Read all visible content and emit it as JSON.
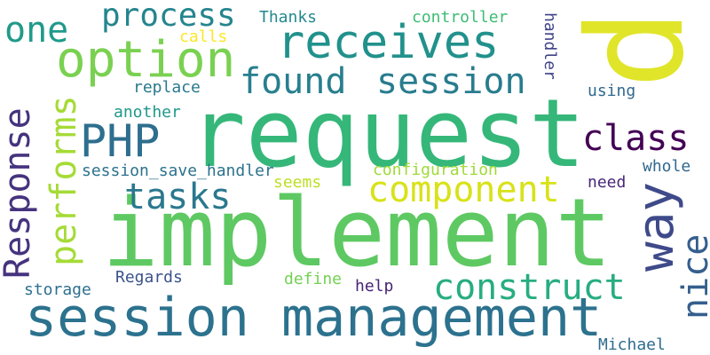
{
  "words": [
    {
      "id": "request",
      "text": "request",
      "color": "#35b779"
    },
    {
      "id": "implement",
      "text": "implement",
      "color": "#5ec962"
    },
    {
      "id": "session-management",
      "text": "session management",
      "color": "#2c728e"
    },
    {
      "id": "p",
      "text": "p",
      "color": "#e0e52a"
    },
    {
      "id": "receives",
      "text": "receives",
      "color": "#21918c"
    },
    {
      "id": "option",
      "text": "option",
      "color": "#7ad151"
    },
    {
      "id": "found",
      "text": "found",
      "color": "#277f8e"
    },
    {
      "id": "session",
      "text": "session",
      "color": "#287c8e"
    },
    {
      "id": "process",
      "text": "process",
      "color": "#25858e"
    },
    {
      "id": "one",
      "text": "one",
      "color": "#1f9a8a"
    },
    {
      "id": "php",
      "text": "PHP",
      "color": "#2e6e8e"
    },
    {
      "id": "class",
      "text": "class",
      "color": "#440154"
    },
    {
      "id": "way",
      "text": "way",
      "color": "#3e4a89"
    },
    {
      "id": "tasks",
      "text": "tasks",
      "color": "#2a788e"
    },
    {
      "id": "component",
      "text": "component",
      "color": "#d8e219"
    },
    {
      "id": "construct",
      "text": "construct",
      "color": "#27ad81"
    },
    {
      "id": "response",
      "text": "Response",
      "color": "#46337e"
    },
    {
      "id": "performs",
      "text": "performs",
      "color": "#a5db36"
    },
    {
      "id": "nice",
      "text": "nice",
      "color": "#355f8d"
    },
    {
      "id": "thanks",
      "text": "Thanks",
      "color": "#23898e"
    },
    {
      "id": "controller",
      "text": "controller",
      "color": "#3dbc74"
    },
    {
      "id": "calls",
      "text": "calls",
      "color": "#fde725"
    },
    {
      "id": "handler",
      "text": "handler",
      "color": "#404387"
    },
    {
      "id": "replace",
      "text": "replace",
      "color": "#2a788e"
    },
    {
      "id": "using",
      "text": "using",
      "color": "#31688e"
    },
    {
      "id": "another",
      "text": "another",
      "color": "#1f988b"
    },
    {
      "id": "session-save-handler",
      "text": "session_save_handler",
      "color": "#2c728e"
    },
    {
      "id": "configuration",
      "text": "configuration",
      "color": "#a0da39"
    },
    {
      "id": "whole",
      "text": "whole",
      "color": "#31688e"
    },
    {
      "id": "seems",
      "text": "seems",
      "color": "#bddf26"
    },
    {
      "id": "need",
      "text": "need",
      "color": "#482878"
    },
    {
      "id": "regards",
      "text": "Regards",
      "color": "#3b528b"
    },
    {
      "id": "storage",
      "text": "storage",
      "color": "#2d708e"
    },
    {
      "id": "define",
      "text": "define",
      "color": "#75d054"
    },
    {
      "id": "help",
      "text": "help",
      "color": "#482475"
    },
    {
      "id": "michael",
      "text": "Michael",
      "color": "#2f6c8e"
    }
  ]
}
